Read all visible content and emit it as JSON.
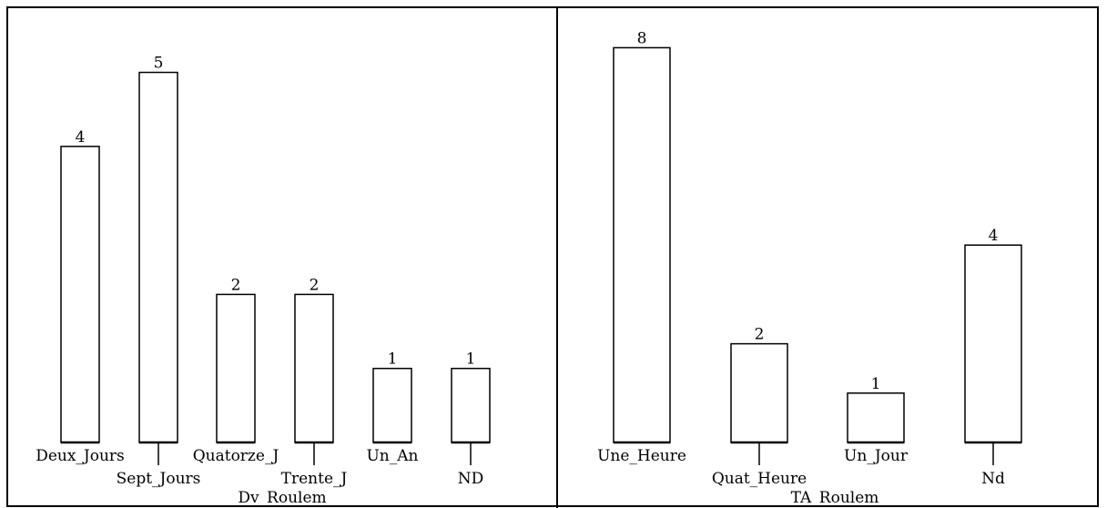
{
  "chart_data": [
    {
      "type": "bar",
      "title": "",
      "xlabel": "Dv_Roulem",
      "ylabel": "",
      "categories": [
        "Deux_Jours",
        "Sept_Jours",
        "Quatorze_J",
        "Trente_J",
        "Un_An",
        "ND"
      ],
      "values": [
        4,
        5,
        2,
        2,
        1,
        1
      ],
      "ylim": [
        0,
        5.4
      ],
      "grid": false,
      "legend": "none"
    },
    {
      "type": "bar",
      "title": "",
      "xlabel": "TA_Roulem",
      "ylabel": "",
      "categories": [
        "Une_Heure",
        "Quat_Heure",
        "Un_Jour",
        "Nd"
      ],
      "values": [
        8,
        2,
        1,
        4
      ],
      "ylim": [
        0,
        8.1
      ],
      "grid": false,
      "legend": "none"
    }
  ],
  "colors": {
    "bar_fill": "#ffffff",
    "bar_stroke": "#000000",
    "frame": "#000000"
  }
}
